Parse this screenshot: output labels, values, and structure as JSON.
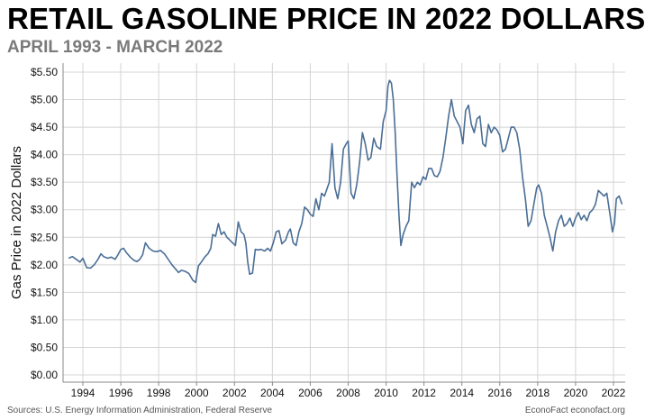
{
  "header": {
    "title": "RETAIL GASOLINE PRICE IN 2022 DOLLARS",
    "subtitle": "APRIL 1993 - MARCH 2022"
  },
  "footer": {
    "source": "Sources: U.S. Energy Information Administration, Federal Reserve",
    "credit": "EconoFact econofact.org"
  },
  "colors": {
    "line": "#4a6e96",
    "grid": "#d4d4d4",
    "axis": "#888888"
  },
  "chart_data": {
    "type": "line",
    "title": "RETAIL GASOLINE PRICE IN 2022 DOLLARS",
    "subtitle": "APRIL 1993 - MARCH 2022",
    "xlabel": "",
    "ylabel": "Gas Price in 2022 Dollars",
    "xlim": [
      1993.0,
      2022.58
    ],
    "ylim": [
      0,
      5.6
    ],
    "x_ticks": [
      1994,
      1996,
      1998,
      2000,
      2002,
      2004,
      2006,
      2008,
      2010,
      2012,
      2014,
      2016,
      2018,
      2020,
      2022
    ],
    "x_tick_labels": [
      "1994",
      "1996",
      "1998",
      "2000",
      "2002",
      "2004",
      "2006",
      "2008",
      "2010",
      "2012",
      "2014",
      "2016",
      "2018",
      "2020",
      "2022"
    ],
    "y_ticks": [
      0,
      0.5,
      1,
      1.5,
      2,
      2.5,
      3,
      3.5,
      4,
      4.5,
      5,
      5.5
    ],
    "y_tick_labels": [
      "$0.00",
      "$0.50",
      "$1.00",
      "$1.50",
      "$2.00",
      "$2.50",
      "$3.00",
      "$3.50",
      "$4.00",
      "$4.50",
      "$5.00",
      "$5.50"
    ],
    "grid": true,
    "series": [
      {
        "name": "",
        "color": "#4a6e96",
        "points": [
          [
            1993.25,
            2.12
          ],
          [
            1993.45,
            2.15
          ],
          [
            1993.65,
            2.1
          ],
          [
            1993.85,
            2.05
          ],
          [
            1994.0,
            2.12
          ],
          [
            1994.2,
            1.95
          ],
          [
            1994.4,
            1.94
          ],
          [
            1994.6,
            2.0
          ],
          [
            1994.8,
            2.1
          ],
          [
            1994.95,
            2.2
          ],
          [
            1995.1,
            2.15
          ],
          [
            1995.3,
            2.12
          ],
          [
            1995.5,
            2.14
          ],
          [
            1995.7,
            2.1
          ],
          [
            1995.85,
            2.18
          ],
          [
            1996.0,
            2.28
          ],
          [
            1996.15,
            2.3
          ],
          [
            1996.3,
            2.22
          ],
          [
            1996.5,
            2.14
          ],
          [
            1996.7,
            2.08
          ],
          [
            1996.85,
            2.06
          ],
          [
            1997.0,
            2.1
          ],
          [
            1997.15,
            2.18
          ],
          [
            1997.3,
            2.4
          ],
          [
            1997.5,
            2.3
          ],
          [
            1997.7,
            2.25
          ],
          [
            1997.9,
            2.24
          ],
          [
            1998.1,
            2.26
          ],
          [
            1998.3,
            2.2
          ],
          [
            1998.5,
            2.1
          ],
          [
            1998.7,
            2.0
          ],
          [
            1998.9,
            1.92
          ],
          [
            1999.05,
            1.86
          ],
          [
            1999.2,
            1.9
          ],
          [
            1999.4,
            1.88
          ],
          [
            1999.6,
            1.84
          ],
          [
            1999.8,
            1.72
          ],
          [
            1999.95,
            1.68
          ],
          [
            2000.1,
            1.98
          ],
          [
            2000.25,
            2.05
          ],
          [
            2000.45,
            2.15
          ],
          [
            2000.6,
            2.2
          ],
          [
            2000.75,
            2.3
          ],
          [
            2000.85,
            2.55
          ],
          [
            2001.0,
            2.52
          ],
          [
            2001.15,
            2.75
          ],
          [
            2001.3,
            2.55
          ],
          [
            2001.45,
            2.6
          ],
          [
            2001.6,
            2.5
          ],
          [
            2001.75,
            2.45
          ],
          [
            2001.9,
            2.4
          ],
          [
            2002.05,
            2.35
          ],
          [
            2002.2,
            2.78
          ],
          [
            2002.35,
            2.6
          ],
          [
            2002.5,
            2.55
          ],
          [
            2002.6,
            2.4
          ],
          [
            2002.7,
            2.05
          ],
          [
            2002.8,
            1.83
          ],
          [
            2002.95,
            1.85
          ],
          [
            2003.1,
            2.28
          ],
          [
            2003.25,
            2.27
          ],
          [
            2003.4,
            2.28
          ],
          [
            2003.6,
            2.25
          ],
          [
            2003.75,
            2.3
          ],
          [
            2003.9,
            2.25
          ],
          [
            2004.05,
            2.4
          ],
          [
            2004.2,
            2.6
          ],
          [
            2004.35,
            2.62
          ],
          [
            2004.5,
            2.38
          ],
          [
            2004.7,
            2.45
          ],
          [
            2004.85,
            2.6
          ],
          [
            2004.95,
            2.65
          ],
          [
            2005.1,
            2.4
          ],
          [
            2005.25,
            2.35
          ],
          [
            2005.4,
            2.6
          ],
          [
            2005.55,
            2.75
          ],
          [
            2005.7,
            3.05
          ],
          [
            2005.85,
            3.0
          ],
          [
            2006.0,
            2.92
          ],
          [
            2006.15,
            2.88
          ],
          [
            2006.3,
            3.2
          ],
          [
            2006.45,
            3.0
          ],
          [
            2006.6,
            3.3
          ],
          [
            2006.75,
            3.25
          ],
          [
            2006.9,
            3.4
          ],
          [
            2007.0,
            3.5
          ],
          [
            2007.15,
            4.2
          ],
          [
            2007.3,
            3.4
          ],
          [
            2007.45,
            3.2
          ],
          [
            2007.6,
            3.5
          ],
          [
            2007.75,
            4.1
          ],
          [
            2007.9,
            4.2
          ],
          [
            2008.0,
            4.25
          ],
          [
            2008.15,
            3.3
          ],
          [
            2008.3,
            3.2
          ],
          [
            2008.45,
            3.45
          ],
          [
            2008.6,
            3.85
          ],
          [
            2008.75,
            4.4
          ],
          [
            2008.9,
            4.2
          ],
          [
            2009.05,
            3.9
          ],
          [
            2009.2,
            3.95
          ],
          [
            2009.35,
            4.3
          ],
          [
            2009.5,
            4.15
          ],
          [
            2009.7,
            4.1
          ],
          [
            2009.85,
            4.6
          ],
          [
            2010.0,
            4.8
          ],
          [
            2010.1,
            5.25
          ],
          [
            2010.18,
            5.35
          ],
          [
            2010.28,
            5.3
          ],
          [
            2010.38,
            5.0
          ],
          [
            2010.48,
            4.4
          ],
          [
            2010.58,
            3.6
          ],
          [
            2010.68,
            2.9
          ],
          [
            2010.78,
            2.35
          ],
          [
            2010.9,
            2.55
          ],
          [
            2011.05,
            2.7
          ],
          [
            2011.2,
            2.8
          ],
          [
            2011.35,
            3.5
          ],
          [
            2011.5,
            3.4
          ],
          [
            2011.65,
            3.5
          ],
          [
            2011.8,
            3.45
          ],
          [
            2011.95,
            3.6
          ],
          [
            2012.1,
            3.55
          ],
          [
            2012.25,
            3.75
          ],
          [
            2012.4,
            3.75
          ],
          [
            2012.55,
            3.62
          ],
          [
            2012.7,
            3.6
          ],
          [
            2012.85,
            3.7
          ],
          [
            2013.0,
            3.95
          ],
          [
            2013.15,
            4.3
          ],
          [
            2013.3,
            4.7
          ],
          [
            2013.45,
            5.0
          ],
          [
            2013.6,
            4.7
          ],
          [
            2013.75,
            4.6
          ],
          [
            2013.9,
            4.5
          ],
          [
            2014.05,
            4.2
          ],
          [
            2014.2,
            4.8
          ],
          [
            2014.35,
            4.9
          ],
          [
            2014.5,
            4.55
          ],
          [
            2014.65,
            4.4
          ],
          [
            2014.8,
            4.65
          ],
          [
            2014.95,
            4.7
          ],
          [
            2015.1,
            4.2
          ],
          [
            2015.25,
            4.15
          ],
          [
            2015.4,
            4.55
          ],
          [
            2015.55,
            4.4
          ],
          [
            2015.7,
            4.5
          ],
          [
            2015.85,
            4.45
          ],
          [
            2016.0,
            4.35
          ],
          [
            2016.15,
            4.05
          ],
          [
            2016.3,
            4.1
          ],
          [
            2016.45,
            4.3
          ],
          [
            2016.6,
            4.5
          ],
          [
            2016.75,
            4.5
          ],
          [
            2016.9,
            4.4
          ],
          [
            2017.05,
            4.1
          ],
          [
            2017.2,
            3.6
          ],
          [
            2017.35,
            3.2
          ],
          [
            2017.5,
            2.7
          ],
          [
            2017.65,
            2.8
          ],
          [
            2017.8,
            3.1
          ],
          [
            2017.95,
            3.4
          ],
          [
            2018.05,
            3.45
          ],
          [
            2018.2,
            3.3
          ],
          [
            2018.35,
            2.9
          ],
          [
            2018.5,
            2.7
          ],
          [
            2018.65,
            2.5
          ],
          [
            2018.8,
            2.25
          ],
          [
            2018.95,
            2.6
          ],
          [
            2019.1,
            2.8
          ],
          [
            2019.25,
            2.9
          ],
          [
            2019.4,
            2.7
          ],
          [
            2019.55,
            2.75
          ],
          [
            2019.7,
            2.85
          ],
          [
            2019.85,
            2.7
          ],
          [
            2020.0,
            2.85
          ],
          [
            2020.15,
            2.95
          ],
          [
            2020.3,
            2.82
          ],
          [
            2020.45,
            2.9
          ],
          [
            2020.6,
            2.8
          ],
          [
            2020.75,
            2.95
          ],
          [
            2020.9,
            3.0
          ],
          [
            2021.05,
            3.1
          ],
          [
            2021.2,
            3.35
          ],
          [
            2021.35,
            3.3
          ],
          [
            2021.5,
            3.25
          ],
          [
            2021.65,
            3.3
          ],
          [
            2021.8,
            2.95
          ],
          [
            2021.95,
            2.6
          ],
          [
            2022.05,
            2.75
          ],
          [
            2022.15,
            3.2
          ],
          [
            2022.3,
            3.25
          ],
          [
            2022.45,
            3.1
          ]
        ]
      }
    ]
  }
}
